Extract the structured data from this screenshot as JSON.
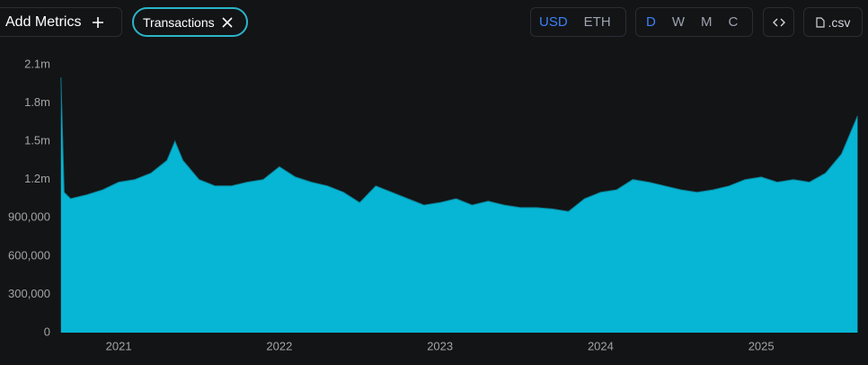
{
  "toolbar": {
    "add_metrics": "Add Metrics",
    "metric_chip": "Transactions",
    "currency": [
      "USD",
      "ETH"
    ],
    "intervals": [
      "D",
      "W",
      "M",
      "C"
    ],
    "csv": ".csv"
  },
  "chart_data": {
    "type": "area",
    "color": "#06b6d4",
    "line_color": "#0e7f93",
    "x": [
      2020.64,
      2020.66,
      2020.7,
      2020.8,
      2020.9,
      2021.0,
      2021.1,
      2021.2,
      2021.3,
      2021.35,
      2021.4,
      2021.5,
      2021.6,
      2021.7,
      2021.8,
      2021.9,
      2022.0,
      2022.1,
      2022.2,
      2022.3,
      2022.4,
      2022.5,
      2022.6,
      2022.7,
      2022.8,
      2022.9,
      2023.0,
      2023.1,
      2023.2,
      2023.3,
      2023.4,
      2023.5,
      2023.6,
      2023.7,
      2023.8,
      2023.85,
      2023.9,
      2024.0,
      2024.1,
      2024.2,
      2024.3,
      2024.4,
      2024.5,
      2024.6,
      2024.7,
      2024.8,
      2024.9,
      2025.0,
      2025.1,
      2025.2,
      2025.3,
      2025.4,
      2025.5,
      2025.6
    ],
    "values": [
      2000000,
      1100000,
      1050000,
      1080000,
      1120000,
      1180000,
      1200000,
      1250000,
      1350000,
      1500000,
      1350000,
      1200000,
      1150000,
      1150000,
      1180000,
      1200000,
      1300000,
      1220000,
      1180000,
      1150000,
      1100000,
      1020000,
      1150000,
      1100000,
      1050000,
      1000000,
      1020000,
      1050000,
      1000000,
      1030000,
      1000000,
      980000,
      980000,
      970000,
      950000,
      1000000,
      1050000,
      1100000,
      1120000,
      1200000,
      1180000,
      1150000,
      1120000,
      1100000,
      1120000,
      1150000,
      1200000,
      1220000,
      1180000,
      1200000,
      1180000,
      1250000,
      1400000,
      1700000
    ],
    "xlim": [
      2020.63,
      2025.62
    ],
    "ylim": [
      0,
      2100000
    ],
    "xticks": [
      2021,
      2022,
      2023,
      2024,
      2025
    ],
    "yticks": [
      0,
      {
        "value": 300000,
        "label": "300,000"
      },
      {
        "value": 600000,
        "label": "600,000"
      },
      {
        "value": 900000,
        "label": "900,000"
      },
      {
        "value": 1200000,
        "label": "1.2m"
      },
      {
        "value": 1500000,
        "label": "1.5m"
      },
      {
        "value": 1800000,
        "label": "1.8m"
      },
      {
        "value": 2100000,
        "label": "2.1m"
      }
    ],
    "grid": false
  }
}
